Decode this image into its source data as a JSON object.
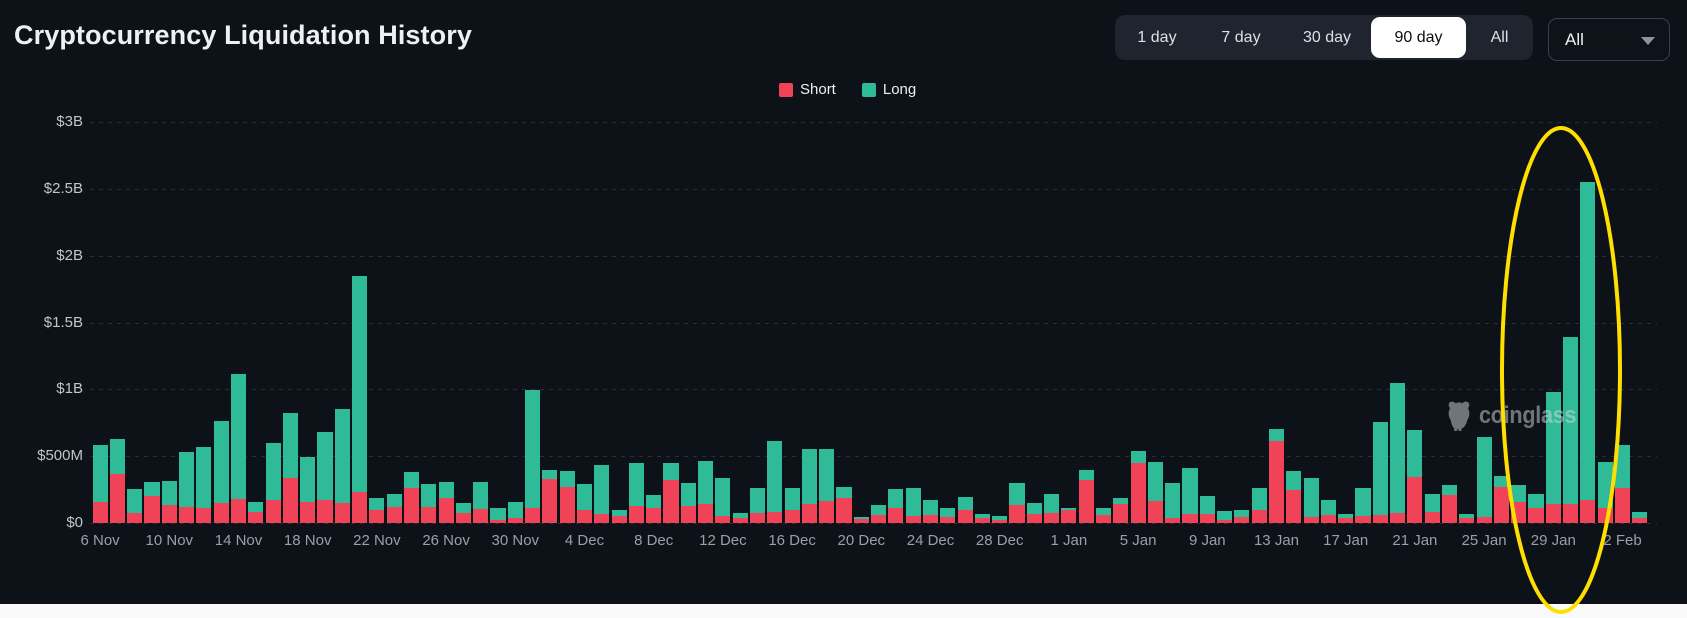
{
  "title": "Cryptocurrency Liquidation History",
  "toolbar": {
    "ranges": [
      "1 day",
      "7 day",
      "30 day",
      "90 day",
      "All"
    ],
    "active_range": "90 day",
    "dropdown_value": "All"
  },
  "legend": [
    {
      "label": "Short",
      "color": "#f04358"
    },
    {
      "label": "Long",
      "color": "#2fbb97"
    }
  ],
  "watermark": "coinglass",
  "colors": {
    "background": "#0d1118",
    "short": "#f04358",
    "long": "#2fbb97",
    "annotation": "#ffdf00"
  },
  "chart_data": {
    "type": "bar",
    "stacked": true,
    "title": "Cryptocurrency Liquidation History",
    "unit": "millions USD",
    "ylim": [
      0,
      3000
    ],
    "y_tick_values": [
      0,
      500,
      1000,
      1500,
      2000,
      2500,
      3000
    ],
    "y_tick_labels": [
      "$0",
      "$500M",
      "$1B",
      "$1.5B",
      "$2B",
      "$2.5B",
      "$3B"
    ],
    "x_tick_every": 4,
    "grid": "dashed-horizontal",
    "legend_position": "top-center",
    "categories": [
      "6 Nov",
      "7 Nov",
      "8 Nov",
      "9 Nov",
      "10 Nov",
      "11 Nov",
      "12 Nov",
      "13 Nov",
      "14 Nov",
      "15 Nov",
      "16 Nov",
      "17 Nov",
      "18 Nov",
      "19 Nov",
      "20 Nov",
      "21 Nov",
      "22 Nov",
      "23 Nov",
      "24 Nov",
      "25 Nov",
      "26 Nov",
      "27 Nov",
      "28 Nov",
      "29 Nov",
      "30 Nov",
      "1 Dec",
      "2 Dec",
      "3 Dec",
      "4 Dec",
      "5 Dec",
      "6 Dec",
      "7 Dec",
      "8 Dec",
      "9 Dec",
      "10 Dec",
      "11 Dec",
      "12 Dec",
      "13 Dec",
      "14 Dec",
      "15 Dec",
      "16 Dec",
      "17 Dec",
      "18 Dec",
      "19 Dec",
      "20 Dec",
      "21 Dec",
      "22 Dec",
      "23 Dec",
      "24 Dec",
      "25 Dec",
      "26 Dec",
      "27 Dec",
      "28 Dec",
      "29 Dec",
      "30 Dec",
      "31 Dec",
      "1 Jan",
      "2 Jan",
      "3 Jan",
      "4 Jan",
      "5 Jan",
      "6 Jan",
      "7 Jan",
      "8 Jan",
      "9 Jan",
      "10 Jan",
      "11 Jan",
      "12 Jan",
      "13 Jan",
      "14 Jan",
      "15 Jan",
      "16 Jan",
      "17 Jan",
      "18 Jan",
      "19 Jan",
      "20 Jan",
      "21 Jan",
      "22 Jan",
      "23 Jan",
      "24 Jan",
      "25 Jan",
      "26 Jan",
      "27 Jan",
      "28 Jan",
      "29 Jan",
      "30 Jan",
      "31 Jan",
      "1 Feb",
      "2 Feb",
      "3 Feb"
    ],
    "series": [
      {
        "name": "Short",
        "color": "#f04358",
        "values": [
          160,
          365,
          75,
          200,
          135,
          120,
          110,
          150,
          180,
          85,
          170,
          335,
          160,
          170,
          150,
          235,
          100,
          120,
          260,
          120,
          185,
          75,
          105,
          25,
          40,
          115,
          330,
          270,
          95,
          65,
          55,
          125,
          115,
          320,
          125,
          145,
          55,
          40,
          75,
          85,
          100,
          145,
          165,
          185,
          30,
          60,
          115,
          55,
          60,
          45,
          95,
          35,
          25,
          135,
          65,
          75,
          95,
          320,
          60,
          140,
          450,
          165,
          40,
          70,
          65,
          25,
          45,
          100,
          610,
          250,
          45,
          60,
          40,
          50,
          60,
          75,
          345,
          85,
          210,
          40,
          45,
          270,
          160,
          110,
          140,
          145,
          170,
          115,
          260,
          35
        ]
      },
      {
        "name": "Long",
        "color": "#2fbb97",
        "values": [
          420,
          265,
          180,
          105,
          180,
          410,
          460,
          610,
          935,
          70,
          430,
          485,
          335,
          510,
          700,
          1615,
          90,
          95,
          120,
          170,
          120,
          75,
          205,
          90,
          115,
          880,
          70,
          120,
          200,
          370,
          40,
          325,
          95,
          130,
          175,
          320,
          285,
          35,
          190,
          525,
          165,
          405,
          385,
          85,
          15,
          75,
          140,
          210,
          115,
          70,
          100,
          30,
          30,
          165,
          85,
          140,
          15,
          80,
          55,
          50,
          90,
          295,
          260,
          340,
          135,
          65,
          50,
          160,
          90,
          140,
          295,
          110,
          30,
          215,
          695,
          970,
          350,
          135,
          75,
          30,
          600,
          80,
          125,
          105,
          840,
          1245,
          2380,
          345,
          325,
          50
        ]
      }
    ],
    "annotation": {
      "shape": "ellipse",
      "color": "#ffdf00",
      "highlights": "spike around 29 Jan - 2 Feb"
    }
  }
}
